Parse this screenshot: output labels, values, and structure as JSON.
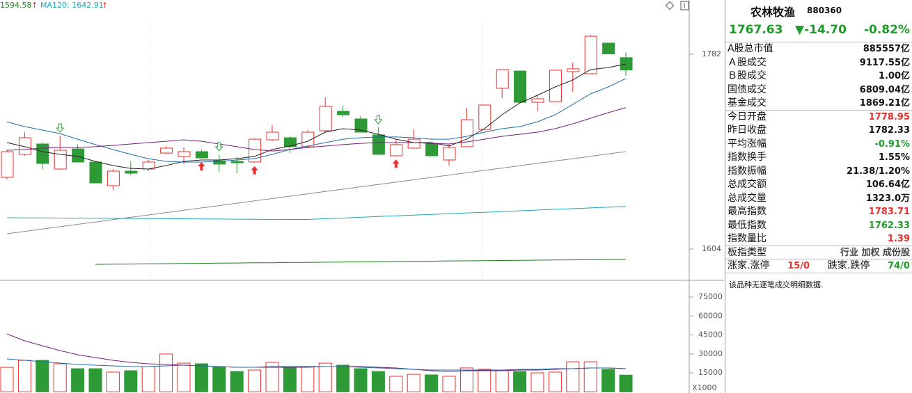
{
  "chart_data": {
    "type": "candlestick",
    "ma_labels": [
      {
        "text": "1594.58",
        "color": "#1a8a1a"
      },
      {
        "text": "MA120: 1642.91",
        "color": "#1aa8b8"
      }
    ],
    "ma_arrow": "↑",
    "up_color": "#e8302c",
    "down_color": "#2e9a36",
    "open": [
      1669.5,
      1690.5,
      1700.0,
      1677.1,
      1695.5,
      1683.5,
      1661.9,
      1675.2,
      1677.1,
      1691.7,
      1688.6,
      1693.0,
      1684.7,
      1684.1,
      1683.5,
      1703.8,
      1705.7,
      1697.5,
      1712.1,
      1729.9,
      1722.9,
      1708.3,
      1689.2,
      1696.2,
      1700.6,
      1685.4,
      1697.5,
      1713.3,
      1750.9,
      1766.7,
      1738.1,
      1738.8,
      1766.1,
      1764.2,
      1792.2,
      1778.95
    ],
    "high": [
      1694.9,
      1710.8,
      1701.3,
      1707.6,
      1699.4,
      1684.1,
      1677.1,
      1684.1,
      1685.4,
      1698.1,
      1696.8,
      1694.9,
      1690.5,
      1687.9,
      1705.0,
      1717.2,
      1707.0,
      1712.7,
      1742.6,
      1735.0,
      1725.4,
      1715.3,
      1704.4,
      1713.3,
      1701.3,
      1699.4,
      1733.1,
      1736.0,
      1768.3,
      1767.0,
      1745.1,
      1768.0,
      1774.4,
      1799.8,
      1792.5,
      1783.71
    ],
    "low": [
      1667.6,
      1689.2,
      1677.1,
      1676.5,
      1683.0,
      1664.0,
      1658.0,
      1671.4,
      1675.2,
      1690.5,
      1681.6,
      1686.6,
      1674.6,
      1673.3,
      1683.0,
      1702.5,
      1691.7,
      1696.2,
      1710.8,
      1724.8,
      1710.5,
      1690.0,
      1689.0,
      1695.5,
      1689.0,
      1680.3,
      1697.0,
      1713.0,
      1742.0,
      1737.8,
      1729.9,
      1738.5,
      1747.7,
      1764.0,
      1782.0,
      1762.33
    ],
    "close": [
      1693.0,
      1705.7,
      1682.2,
      1694.3,
      1683.5,
      1664.4,
      1675.2,
      1673.3,
      1683.5,
      1696.2,
      1693.0,
      1687.3,
      1681.6,
      1682.8,
      1704.4,
      1710.8,
      1697.5,
      1710.8,
      1734.3,
      1726.7,
      1710.8,
      1690.5,
      1699.4,
      1704.4,
      1689.2,
      1696.8,
      1722.2,
      1735.6,
      1768.0,
      1738.1,
      1741.3,
      1767.4,
      1768.7,
      1798.5,
      1782.33,
      1767.63
    ],
    "ylim": [
      1577.3,
      1831.6
    ],
    "yticks": [
      1604,
      1782
    ],
    "signals": {
      "buy": [
        11,
        14,
        22
      ],
      "sell": [
        3,
        12,
        21
      ]
    },
    "lines": [
      {
        "color": "#222222",
        "values": [
          1701.3,
          1697.5,
          1693.0,
          1690.5,
          1688.6,
          1684.1,
          1680.3,
          1677.7,
          1677.1,
          1680.3,
          1684.1,
          1685.4,
          1685.4,
          1686.6,
          1688.6,
          1694.9,
          1698.1,
          1702.5,
          1710.8,
          1714.0,
          1712.7,
          1708.9,
          1704.4,
          1701.3,
          1701.3,
          1698.1,
          1704.4,
          1714.0,
          1726.7,
          1737.5,
          1744.5,
          1752.1,
          1758.5,
          1768.0,
          1769.9,
          1773.1
        ]
      },
      {
        "color": "#1f6fa8",
        "values": [
          1720.3,
          1715.9,
          1712.7,
          1709.5,
          1704.4,
          1699.4,
          1694.9,
          1690.5,
          1686.6,
          1684.1,
          1683.5,
          1683.5,
          1684.1,
          1685.4,
          1686.6,
          1690.5,
          1694.9,
          1698.1,
          1701.3,
          1704.4,
          1705.7,
          1706.4,
          1706.4,
          1705.7,
          1704.4,
          1704.4,
          1707.0,
          1710.8,
          1714.0,
          1715.9,
          1720.3,
          1726.7,
          1736.2,
          1745.8,
          1752.1,
          1759.8
        ]
      },
      {
        "color": "#7a1c7a",
        "values": [
          1694.3,
          1694.9,
          1696.2,
          1696.8,
          1696.8,
          1697.5,
          1698.7,
          1700.0,
          1701.3,
          1702.5,
          1703.8,
          1702.5,
          1700.0,
          1697.5,
          1694.9,
          1693.6,
          1694.9,
          1696.8,
          1698.1,
          1699.4,
          1700.6,
          1701.3,
          1701.3,
          1701.3,
          1700.6,
          1700.0,
          1701.9,
          1704.4,
          1707.0,
          1708.9,
          1710.8,
          1714.0,
          1718.4,
          1723.5,
          1728.6,
          1733.1
        ]
      },
      {
        "color": "#8a8a8a",
        "values": [
          1618.0,
          1620.1,
          1622.3,
          1624.4,
          1626.6,
          1628.7,
          1630.9,
          1633.0,
          1635.1,
          1637.3,
          1639.4,
          1641.6,
          1643.7,
          1645.9,
          1648.0,
          1650.1,
          1652.3,
          1654.4,
          1656.6,
          1658.7,
          1660.9,
          1663.0,
          1665.1,
          1667.3,
          1669.4,
          1671.6,
          1673.7,
          1675.9,
          1678.0,
          1680.1,
          1682.3,
          1684.4,
          1686.6,
          1688.7,
          1690.9,
          1693.0
        ]
      },
      {
        "color": "#1aa8b8",
        "values": [
          1632.6,
          1632.5,
          1632.4,
          1632.3,
          1632.2,
          1632.1,
          1632.0,
          1631.9,
          1631.8,
          1631.7,
          1631.6,
          1631.5,
          1631.4,
          1631.3,
          1631.2,
          1631.1,
          1631.0,
          1631.0,
          1631.7,
          1632.3,
          1633.0,
          1633.7,
          1634.3,
          1635.0,
          1635.6,
          1636.3,
          1637.0,
          1637.6,
          1638.3,
          1638.9,
          1639.6,
          1640.3,
          1640.9,
          1641.6,
          1642.2,
          1642.9
        ]
      },
      {
        "color": "#1a7a1a",
        "values": [
          null,
          null,
          null,
          null,
          null,
          1590.0,
          1590.2,
          1590.3,
          1590.5,
          1590.6,
          1590.8,
          1590.9,
          1591.1,
          1591.2,
          1591.4,
          1591.5,
          1591.7,
          1591.8,
          1592.0,
          1592.1,
          1592.3,
          1592.4,
          1592.6,
          1592.7,
          1592.9,
          1593.1,
          1593.2,
          1593.4,
          1593.5,
          1593.7,
          1593.8,
          1594.0,
          1594.1,
          1594.3,
          1594.4,
          1594.58
        ]
      }
    ],
    "volume": {
      "values": [
        19400,
        24900,
        24900,
        22200,
        18300,
        18300,
        15600,
        16700,
        20000,
        29900,
        22700,
        22200,
        19400,
        16100,
        17200,
        23300,
        19400,
        20000,
        22700,
        21100,
        18300,
        16100,
        12300,
        13900,
        13400,
        12300,
        18900,
        17800,
        17200,
        16100,
        15000,
        15600,
        23800,
        23800,
        17800,
        13230
      ],
      "ylim": [
        -940,
        87140
      ],
      "yticks": [
        15000,
        30000,
        45000,
        60000,
        75000
      ],
      "unit_label": "X1000",
      "lines": [
        {
          "color": "#7a1c7a",
          "values": [
            45850,
            40350,
            36490,
            32640,
            29340,
            27140,
            24940,
            23280,
            22180,
            21630,
            21080,
            20530,
            19980,
            19430,
            19430,
            19430,
            19430,
            19430,
            19980,
            19980,
            19980,
            19430,
            18880,
            17780,
            16680,
            16130,
            16680,
            16680,
            16680,
            17230,
            17230,
            17780,
            18330,
            18880,
            18880,
            18330
          ]
        },
        {
          "color": "#1f6fa8",
          "values": [
            26040,
            24940,
            23830,
            22730,
            21630,
            21080,
            20530,
            19980,
            19980,
            20530,
            21080,
            20530,
            19980,
            19430,
            19430,
            19980,
            19980,
            19980,
            19980,
            19980,
            19430,
            18880,
            18330,
            17780,
            17230,
            17230,
            17230,
            17230,
            17230,
            17780,
            17780,
            18330,
            18330,
            18880,
            18880,
            18330
          ]
        }
      ]
    }
  },
  "panel": {
    "name": "农林牧渔",
    "code": "880360",
    "price": "1767.63",
    "change": "▼-14.70",
    "change_pct": "-0.82%",
    "price_color": "#1e9a28",
    "rows": [
      {
        "label": "A股总市值",
        "value": "885557亿",
        "color": "#111111"
      },
      {
        "label": "Ａ股成交",
        "value": "9117.55亿",
        "color": "#111111"
      },
      {
        "label": "Ｂ股成交",
        "value": "1.00亿",
        "color": "#111111"
      },
      {
        "label": "国债成交",
        "value": "6809.04亿",
        "color": "#111111"
      },
      {
        "label": "基金成交",
        "value": "1869.21亿",
        "color": "#111111"
      },
      {
        "label": "今日开盘",
        "value": "1778.95",
        "color": "#e8302c"
      },
      {
        "label": "昨日收盘",
        "value": "1782.33",
        "color": "#111111"
      },
      {
        "label": "平均涨幅",
        "value": "-0.91%",
        "color": "#1e9a28"
      },
      {
        "label": "指数换手",
        "value": "1.55%",
        "color": "#111111"
      },
      {
        "label": "指数振幅",
        "value": "21.38/1.20%",
        "color": "#111111"
      },
      {
        "label": "总成交额",
        "value": "106.64亿",
        "color": "#111111"
      },
      {
        "label": "总成交量",
        "value": "1323.0万",
        "color": "#111111"
      },
      {
        "label": "最高指数",
        "value": "1783.71",
        "color": "#e8302c"
      },
      {
        "label": "最低指数",
        "value": "1762.33",
        "color": "#1e9a28"
      },
      {
        "label": "指数量比",
        "value": "1.39",
        "color": "#e8302c"
      },
      {
        "label": "板指类型",
        "value": "行业 加权 成份股",
        "color": "#444444"
      }
    ],
    "breadth": {
      "up_label": "涨家.涨停",
      "up": "15/0",
      "up_color": "#e8302c",
      "down_label": "跌家.跌停",
      "down": "74/0",
      "down_color": "#1e9a28"
    },
    "note": "该品种无逐笔成交明细数据."
  }
}
